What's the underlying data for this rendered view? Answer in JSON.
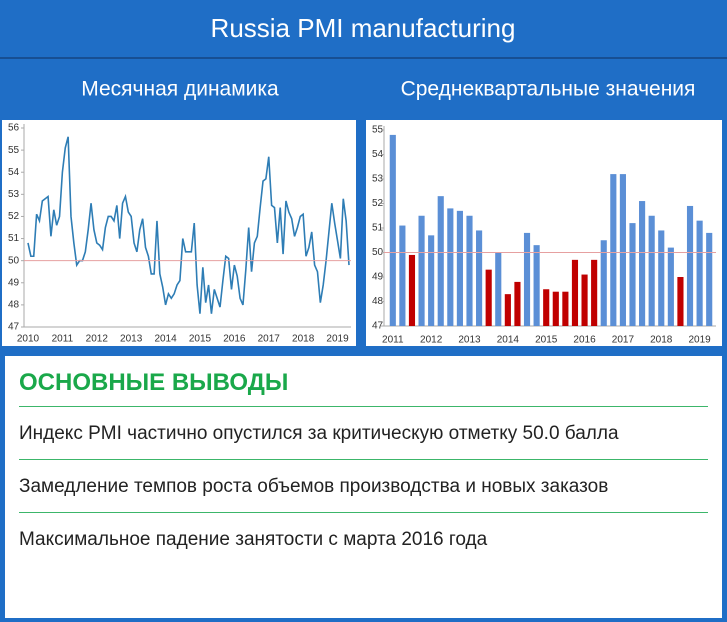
{
  "header": {
    "title": "Russia PMI manufacturing"
  },
  "chart_data": [
    {
      "type": "line",
      "title": "Месячная динамика",
      "categories": [
        "2010",
        null,
        null,
        null,
        null,
        null,
        null,
        null,
        null,
        null,
        null,
        null,
        "2011",
        null,
        null,
        null,
        null,
        null,
        null,
        null,
        null,
        null,
        null,
        null,
        "2012",
        null,
        null,
        null,
        null,
        null,
        null,
        null,
        null,
        null,
        null,
        null,
        "2013",
        null,
        null,
        null,
        null,
        null,
        null,
        null,
        null,
        null,
        null,
        null,
        "2014",
        null,
        null,
        null,
        null,
        null,
        null,
        null,
        null,
        null,
        null,
        null,
        "2015",
        null,
        null,
        null,
        null,
        null,
        null,
        null,
        null,
        null,
        null,
        null,
        "2016",
        null,
        null,
        null,
        null,
        null,
        null,
        null,
        null,
        null,
        null,
        null,
        "2017",
        null,
        null,
        null,
        null,
        null,
        null,
        null,
        null,
        null,
        null,
        null,
        "2018",
        null,
        null,
        null,
        null,
        null,
        null,
        null,
        null,
        null,
        null,
        null,
        "2019",
        null,
        null,
        null,
        null
      ],
      "values": [
        50.8,
        50.2,
        50.2,
        52.1,
        51.8,
        52.7,
        52.8,
        52.9,
        51.1,
        52.3,
        51.6,
        52.0,
        54.0,
        55.1,
        55.6,
        52.0,
        50.8,
        49.8,
        50.0,
        50.0,
        50.4,
        51.4,
        52.6,
        51.4,
        50.8,
        50.7,
        50.5,
        51.5,
        52.0,
        52.0,
        51.8,
        52.5,
        51.0,
        52.6,
        52.9,
        52.2,
        52.0,
        50.8,
        50.4,
        51.4,
        51.9,
        50.6,
        50.2,
        49.4,
        49.4,
        51.8,
        49.4,
        48.8,
        48.0,
        48.5,
        48.3,
        48.5,
        48.9,
        49.1,
        51.0,
        50.4,
        50.4,
        50.4,
        51.7,
        48.9,
        47.6,
        49.7,
        48.1,
        48.9,
        47.6,
        48.7,
        48.3,
        47.9,
        49.1,
        50.2,
        50.1,
        48.7,
        49.8,
        49.3,
        48.3,
        48.0,
        49.6,
        51.5,
        49.5,
        50.8,
        51.1,
        52.4,
        53.6,
        53.7,
        54.7,
        52.5,
        52.4,
        50.8,
        52.4,
        50.3,
        52.7,
        52.2,
        51.9,
        51.1,
        51.5,
        52.0,
        52.1,
        50.2,
        50.6,
        51.3,
        49.8,
        49.5,
        48.1,
        48.9,
        50.0,
        51.3,
        52.6,
        51.7,
        50.9,
        50.1,
        52.8,
        51.8,
        49.8
      ],
      "color": "#2e7db5",
      "ylim": [
        47,
        56
      ],
      "yticks": [
        47,
        48,
        49,
        50,
        51,
        52,
        53,
        54,
        55,
        56
      ],
      "reference_line": 50,
      "reference_color": "#e6a0a0",
      "grid": false
    },
    {
      "type": "bar",
      "title": "Среднеквартальные значения",
      "categories": [
        "2011",
        null,
        null,
        null,
        "2012",
        null,
        null,
        null,
        "2013",
        null,
        null,
        null,
        "2014",
        null,
        null,
        null,
        "2015",
        null,
        null,
        null,
        "2016",
        null,
        null,
        null,
        "2017",
        null,
        null,
        null,
        "2018",
        null,
        null,
        null,
        "2019",
        null
      ],
      "values": [
        54.8,
        51.1,
        49.9,
        51.5,
        50.7,
        52.3,
        51.8,
        51.7,
        51.5,
        50.9,
        49.3,
        50.0,
        48.3,
        48.8,
        50.8,
        50.3,
        48.5,
        48.4,
        48.4,
        49.7,
        49.1,
        49.7,
        50.5,
        53.2,
        53.2,
        51.2,
        52.1,
        51.5,
        50.9,
        50.2,
        49.0,
        51.9,
        51.3,
        50.8
      ],
      "color": "#5b8fd6",
      "below_color": "#c00000",
      "ylim": [
        47,
        55
      ],
      "yticks": [
        47,
        48,
        49,
        50,
        51,
        52,
        53,
        54,
        55
      ],
      "reference_line": 50,
      "reference_color": "#e6a0a0",
      "grid": false
    }
  ],
  "conclusions": {
    "heading": "ОСНОВНЫЕ ВЫВОДЫ",
    "items": [
      "Индекс PMI частично опустился за критическую отметку 50.0 балла",
      "Замедление темпов роста объемов производства и новых заказов",
      "Максимальное падение занятости с марта 2016 года"
    ]
  }
}
